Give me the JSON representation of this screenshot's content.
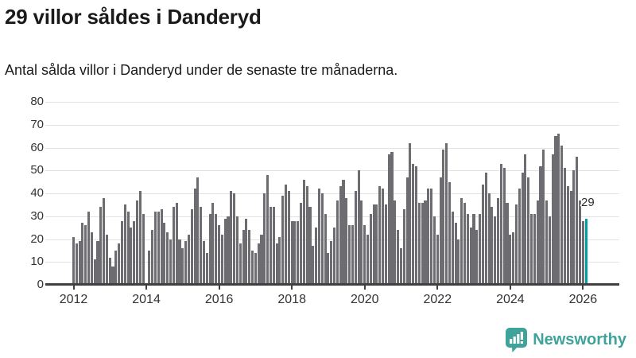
{
  "header": {
    "title": "29 villor såldes i Danderyd",
    "subtitle": "Antal sålda villor i Danderyd under de senaste tre månaderna."
  },
  "footer": {
    "brand": "Newsworthy"
  },
  "colors": {
    "bar": "#6c6c71",
    "highlight": "#00a1a1",
    "grid": "#e2e2e2",
    "axis": "#404040",
    "logo": "#3fa39b"
  },
  "chart_data": {
    "type": "bar",
    "title": "29 villor såldes i Danderyd",
    "subtitle": "Antal sålda villor i Danderyd under de senaste tre månaderna.",
    "x_start": "2012-01",
    "x_interval": "month",
    "x_tick_labels": [
      "2012",
      "2014",
      "2016",
      "2018",
      "2020",
      "2022",
      "2024",
      "2026"
    ],
    "y_ticks": [
      0,
      10,
      20,
      30,
      40,
      50,
      60,
      70,
      80
    ],
    "ylim": [
      0,
      80
    ],
    "grid": true,
    "legend_position": "none",
    "bar_color": "#6c6c71",
    "highlight_color": "#00a1a1",
    "highlight_last": true,
    "highlight_label": "29",
    "values": [
      21,
      18,
      19,
      27,
      26,
      32,
      23,
      11,
      19,
      34,
      38,
      22,
      12,
      8,
      15,
      18,
      28,
      35,
      32,
      25,
      28,
      37,
      41,
      31,
      0,
      15,
      24,
      32,
      32,
      33,
      27,
      23,
      20,
      34,
      36,
      20,
      16,
      19,
      22,
      33,
      42,
      47,
      34,
      19,
      14,
      31,
      36,
      31,
      26,
      22,
      29,
      30,
      41,
      40,
      30,
      18,
      24,
      29,
      24,
      15,
      14,
      18,
      22,
      40,
      48,
      34,
      34,
      18,
      21,
      39,
      44,
      41,
      28,
      28,
      28,
      36,
      46,
      43,
      34,
      17,
      25,
      42,
      40,
      31,
      14,
      19,
      25,
      37,
      43,
      46,
      38,
      26,
      26,
      41,
      50,
      37,
      26,
      22,
      31,
      35,
      35,
      43,
      42,
      35,
      57,
      58,
      37,
      24,
      16,
      33,
      47,
      62,
      53,
      52,
      36,
      36,
      37,
      42,
      42,
      30,
      22,
      47,
      59,
      62,
      45,
      32,
      27,
      20,
      38,
      36,
      31,
      25,
      31,
      24,
      31,
      44,
      49,
      40,
      34,
      30,
      38,
      53,
      51,
      36,
      22,
      23,
      35,
      42,
      49,
      57,
      47,
      31,
      31,
      37,
      52,
      59,
      37,
      30,
      57,
      65,
      66,
      61,
      51,
      43,
      41,
      50,
      56,
      37,
      28,
      29
    ]
  }
}
